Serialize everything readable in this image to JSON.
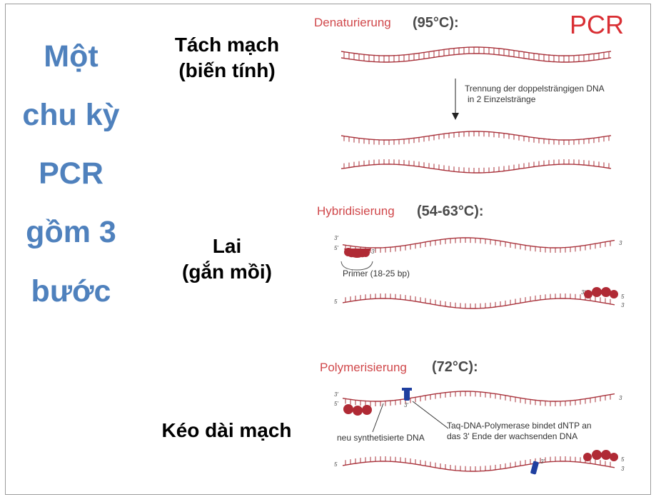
{
  "title_lines": [
    "Một",
    "chu kỳ",
    "PCR",
    "gồm 3",
    "bước"
  ],
  "steps": [
    {
      "lines": [
        "Tách mạch",
        "(biến tính)"
      ]
    },
    {
      "lines": [
        "Lai",
        "(gắn mồi)"
      ]
    },
    {
      "lines": [
        "Kéo dài mạch"
      ]
    }
  ],
  "diagram": {
    "pcr_label": "PCR",
    "stages": [
      {
        "name": "Denaturierung",
        "temp": "(95°C):"
      },
      {
        "name": "Hybridisierung",
        "temp": "(54-63°C):"
      },
      {
        "name": "Polymerisierung",
        "temp": "(72°C):"
      }
    ],
    "notes": {
      "separation_1": "Trennung der doppelsträngigen DNA",
      "separation_2": "in 2 Einzelstränge",
      "primer": "Primer (18-25 bp)",
      "new_dna": "neu synthetisierte DNA",
      "polymerase_1": "Taq-DNA-Polymerase bindet dNTP an",
      "polymerase_2": "das 3' Ende der wachsenden DNA"
    },
    "end_labels": {
      "three": "3'",
      "five": "5'",
      "three_plain": "3",
      "five_plain": "5"
    },
    "colors": {
      "title_blue": "#4f81bd",
      "strand": "#a8313a",
      "primer": "#b02a35",
      "polymerase": "#1f3fa0",
      "label_red": "#d0474a"
    }
  }
}
